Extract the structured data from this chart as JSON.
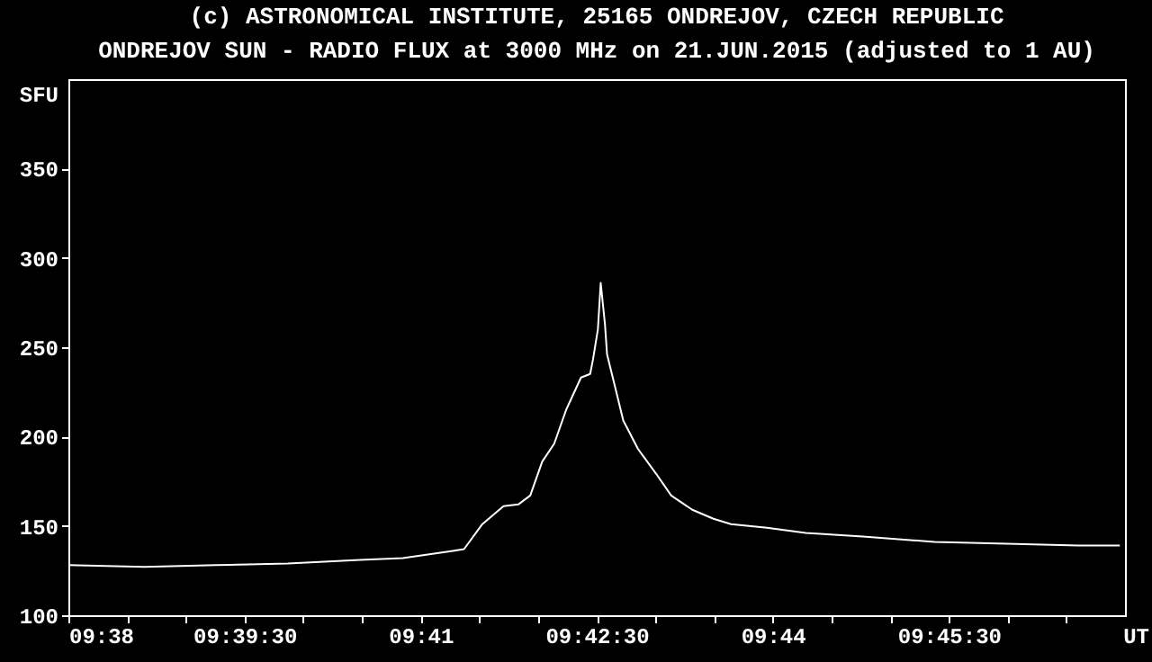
{
  "chart_data": {
    "type": "line",
    "title": "(c) ASTRONOMICAL INSTITUTE, 25165 ONDREJOV, CZECH REPUBLIC",
    "subtitle": "ONDREJOV SUN - RADIO FLUX at 3000 MHz on 21.JUN.2015 (adjusted to 1 AU)",
    "xlabel": "UT",
    "ylabel": "SFU",
    "x": [
      9.63333,
      9.6441,
      9.6543,
      9.6645,
      9.6747,
      9.6808,
      9.6879,
      9.6895,
      9.6921,
      9.6951,
      9.6972,
      9.6989,
      9.7006,
      9.7023,
      9.704,
      9.7061,
      9.7074,
      9.7078,
      9.7085,
      9.7089,
      9.7095,
      9.7098,
      9.7108,
      9.7121,
      9.7142,
      9.7168,
      9.7189,
      9.7219,
      9.7249,
      9.7274,
      9.7325,
      9.738,
      9.7461,
      9.7563,
      9.7665,
      9.7767,
      9.7826
    ],
    "series": [
      {
        "color": "#ffffff",
        "values": [
          128,
          127,
          128,
          129,
          131,
          132,
          136,
          137,
          151,
          161,
          162,
          167,
          186,
          196,
          215,
          233,
          235,
          243,
          260,
          286,
          263,
          246,
          230,
          209,
          193,
          179,
          167,
          159,
          154,
          151,
          149,
          146,
          144,
          141,
          140,
          139,
          139
        ]
      }
    ],
    "xlim": [
      9.63333,
      9.78333
    ],
    "xticks": [
      {
        "value": 9.63333,
        "label": "09:38"
      },
      {
        "value": 9.64167,
        "label": null
      },
      {
        "value": 9.65,
        "label": null
      },
      {
        "value": 9.65833,
        "label": "09:39:30"
      },
      {
        "value": 9.66667,
        "label": null
      },
      {
        "value": 9.675,
        "label": null
      },
      {
        "value": 9.68333,
        "label": "09:41"
      },
      {
        "value": 9.69167,
        "label": null
      },
      {
        "value": 9.7,
        "label": null
      },
      {
        "value": 9.70833,
        "label": "09:42:30"
      },
      {
        "value": 9.71667,
        "label": null
      },
      {
        "value": 9.725,
        "label": null
      },
      {
        "value": 9.73333,
        "label": "09:44"
      },
      {
        "value": 9.74167,
        "label": null
      },
      {
        "value": 9.75,
        "label": null
      },
      {
        "value": 9.75833,
        "label": "09:45:30"
      },
      {
        "value": 9.76667,
        "label": null
      },
      {
        "value": 9.775,
        "label": null
      }
    ],
    "ylim": [
      100,
      400
    ],
    "yticks": [
      100,
      150,
      200,
      250,
      300,
      350
    ],
    "grid": false,
    "marker": "none",
    "line_style": "solid"
  }
}
